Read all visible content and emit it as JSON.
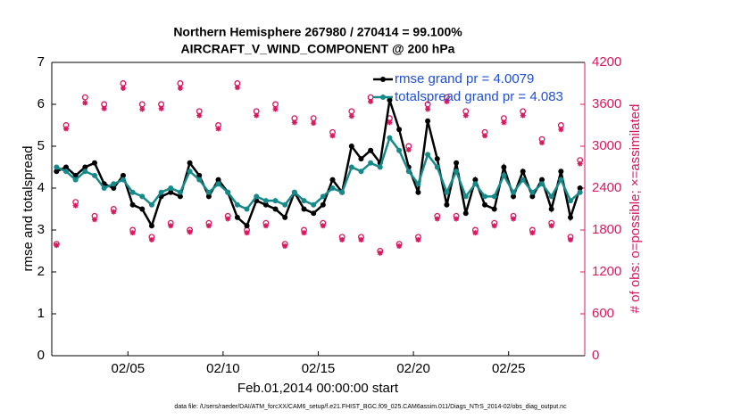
{
  "chart_data": {
    "type": "line",
    "title": "Northern Hemisphere 267980 / 270414 = 99.100%",
    "subtitle": "AIRCRAFT_V_WIND_COMPONENT @ 200 hPa",
    "xlabel": "Feb.01,2014 00:00:00 start",
    "ylabel": "rmse and totalspread",
    "y2label": "# of obs: o=possible; ×=assimilated",
    "footnote": "data file: /Users/raeder/DAI/ATM_forcXX/CAM6_setup/f.e21.FHIST_BGC.f09_025.CAM6assim.011/Diags_NTrS_2014-02/obs_diag_output.nc",
    "legend": "upper right",
    "xlim": [
      0,
      28
    ],
    "xticks": [
      {
        "value": 4,
        "label": "02/05"
      },
      {
        "value": 9,
        "label": "02/10"
      },
      {
        "value": 14,
        "label": "02/15"
      },
      {
        "value": 19,
        "label": "02/20"
      },
      {
        "value": 24,
        "label": "02/25"
      }
    ],
    "ylim": [
      0,
      7
    ],
    "yticks": [
      0,
      1,
      2,
      3,
      4,
      5,
      6,
      7
    ],
    "y2lim": [
      0,
      4200
    ],
    "y2ticks": [
      0,
      600,
      1200,
      1800,
      2400,
      3000,
      3600,
      4200
    ],
    "x": [
      0.25,
      0.75,
      1.25,
      1.75,
      2.25,
      2.75,
      3.25,
      3.75,
      4.25,
      4.75,
      5.25,
      5.75,
      6.25,
      6.75,
      7.25,
      7.75,
      8.25,
      8.75,
      9.25,
      9.75,
      10.25,
      10.75,
      11.25,
      11.75,
      12.25,
      12.75,
      13.25,
      13.75,
      14.25,
      14.75,
      15.25,
      15.75,
      16.25,
      16.75,
      17.25,
      17.75,
      18.25,
      18.75,
      19.25,
      19.75,
      20.25,
      20.75,
      21.25,
      21.75,
      22.25,
      22.75,
      23.25,
      23.75,
      24.25,
      24.75,
      25.25,
      25.75,
      26.25,
      26.75,
      27.25,
      27.75
    ],
    "series": [
      {
        "name": "rmse grand pr = 4.0079",
        "color": "#000000",
        "marker": "dot",
        "values": [
          4.4,
          4.5,
          4.3,
          4.5,
          4.6,
          4.1,
          4.0,
          4.3,
          3.6,
          3.5,
          3.1,
          3.8,
          3.9,
          3.8,
          4.6,
          4.3,
          3.8,
          4.2,
          3.9,
          3.3,
          3.1,
          3.7,
          3.6,
          3.5,
          3.3,
          3.9,
          3.5,
          3.4,
          3.6,
          4.2,
          3.9,
          5.0,
          4.7,
          4.9,
          4.6,
          6.1,
          5.4,
          4.5,
          3.9,
          5.6,
          4.7,
          3.6,
          4.6,
          3.4,
          4.2,
          3.6,
          3.5,
          4.5,
          3.8,
          4.4,
          3.8,
          4.2,
          3.5,
          4.4,
          3.3,
          4.0
        ]
      },
      {
        "name": "totalspread grand pr = 4.083",
        "color": "#168a8a",
        "marker": "dot",
        "values": [
          4.5,
          4.4,
          4.2,
          4.4,
          4.3,
          4.0,
          4.1,
          4.2,
          3.9,
          3.8,
          3.6,
          3.9,
          4.0,
          3.9,
          4.4,
          4.2,
          3.9,
          4.1,
          3.9,
          3.6,
          3.5,
          3.8,
          3.7,
          3.7,
          3.6,
          3.9,
          3.7,
          3.6,
          3.8,
          4.0,
          3.9,
          4.5,
          4.4,
          4.6,
          4.5,
          5.2,
          4.9,
          4.4,
          4.1,
          4.8,
          4.5,
          3.9,
          4.4,
          3.8,
          4.1,
          3.8,
          3.8,
          4.3,
          3.9,
          4.2,
          3.9,
          4.1,
          3.8,
          4.2,
          3.7,
          3.9
        ]
      },
      {
        "color": "#d9185f",
        "axis": "y2",
        "marker": "circle",
        "values": [
          1600,
          3300,
          2200,
          3700,
          2000,
          3600,
          2100,
          3900,
          1800,
          3600,
          1700,
          3600,
          1900,
          3900,
          1800,
          3500,
          1900,
          3300,
          2000,
          3900,
          1800,
          3500,
          1900,
          3600,
          1600,
          3400,
          1800,
          3400,
          1900,
          3200,
          1700,
          3500,
          1700,
          3700,
          1500,
          3400,
          1600,
          3000,
          1700,
          3600,
          2000,
          3700,
          2000,
          3500,
          1800,
          3200,
          1900,
          3400,
          2000,
          3500,
          1800,
          3100,
          1900,
          3300,
          1700,
          2800
        ]
      },
      {
        "color": "#d9185f",
        "axis": "y2",
        "marker": "star",
        "values": [
          1580,
          3250,
          2150,
          3620,
          1950,
          3540,
          2060,
          3830,
          1760,
          3530,
          1660,
          3540,
          1860,
          3830,
          1770,
          3440,
          1860,
          3250,
          1960,
          3840,
          1760,
          3440,
          1860,
          3530,
          1570,
          3340,
          1760,
          3330,
          1860,
          3150,
          1660,
          3430,
          1660,
          3640,
          1470,
          3340,
          1570,
          2950,
          1660,
          3530,
          1960,
          3640,
          1960,
          3440,
          1760,
          3150,
          1860,
          3340,
          1960,
          3440,
          1760,
          3050,
          1860,
          3240,
          1660,
          2750
        ]
      }
    ]
  }
}
